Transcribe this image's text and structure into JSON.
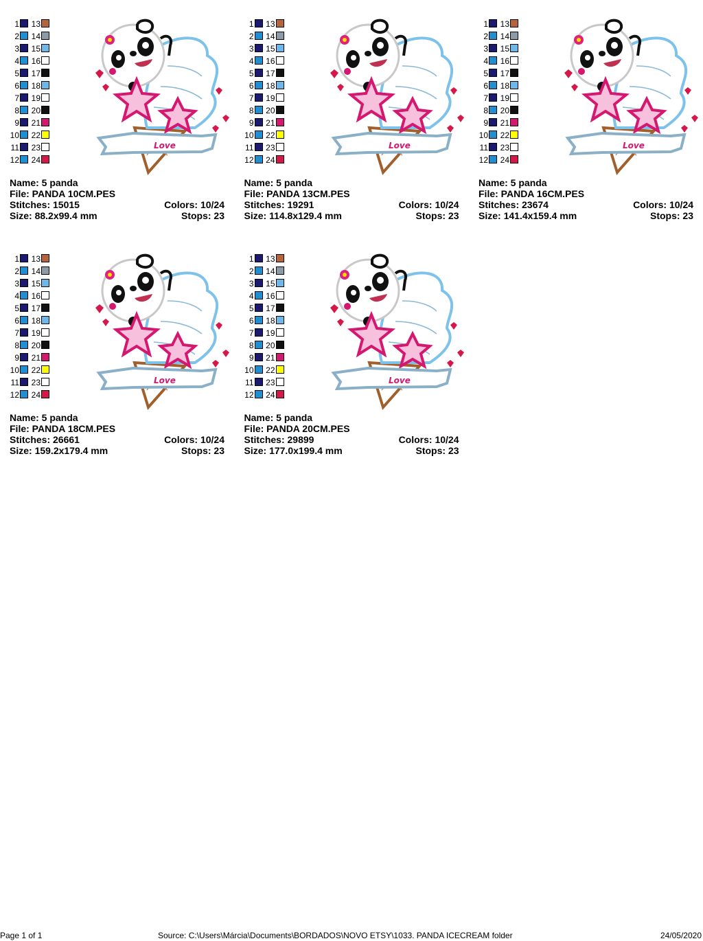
{
  "palette": [
    {
      "number": 1,
      "color": "#1c1a70"
    },
    {
      "number": 2,
      "color": "#1f8fd2"
    },
    {
      "number": 3,
      "color": "#1c1a70"
    },
    {
      "number": 4,
      "color": "#1f8fd2"
    },
    {
      "number": 5,
      "color": "#1c1a70"
    },
    {
      "number": 6,
      "color": "#1f8fd2"
    },
    {
      "number": 7,
      "color": "#1c1a70"
    },
    {
      "number": 8,
      "color": "#1f8fd2"
    },
    {
      "number": 9,
      "color": "#1c1a70"
    },
    {
      "number": 10,
      "color": "#1f8fd2"
    },
    {
      "number": 11,
      "color": "#1c1a70"
    },
    {
      "number": 12,
      "color": "#1f8fd2"
    },
    {
      "number": 13,
      "color": "#b8643a"
    },
    {
      "number": 14,
      "color": "#8b9ba8"
    },
    {
      "number": 15,
      "color": "#6cb8ea"
    },
    {
      "number": 16,
      "color": "#ffffff"
    },
    {
      "number": 17,
      "color": "#111111"
    },
    {
      "number": 18,
      "color": "#6cb8ea"
    },
    {
      "number": 19,
      "color": "#ffffff"
    },
    {
      "number": 20,
      "color": "#111111"
    },
    {
      "number": 21,
      "color": "#d4176f"
    },
    {
      "number": 22,
      "color": "#ffff00"
    },
    {
      "number": 23,
      "color": "#ffffff"
    },
    {
      "number": 24,
      "color": "#d4184a"
    }
  ],
  "designs": [
    {
      "name": "Name: 5 panda",
      "file": "File: PANDA 10CM.PES",
      "stitches": "Stitches: 15015",
      "colors": "Colors: 10/24",
      "size": "Size: 88.2x99.4 mm",
      "stops": "Stops: 23"
    },
    {
      "name": "Name: 5 panda",
      "file": "File: PANDA 13CM.PES",
      "stitches": "Stitches: 19291",
      "colors": "Colors: 10/24",
      "size": "Size: 114.8x129.4 mm",
      "stops": "Stops: 23"
    },
    {
      "name": "Name: 5 panda",
      "file": "File: PANDA 16CM.PES",
      "stitches": "Stitches: 23674",
      "colors": "Colors: 10/24",
      "size": "Size: 141.4x159.4 mm",
      "stops": "Stops: 23"
    },
    {
      "name": "Name: 5 panda",
      "file": "File: PANDA 18CM.PES",
      "stitches": "Stitches: 26661",
      "colors": "Colors: 10/24",
      "size": "Size: 159.2x179.4 mm",
      "stops": "Stops: 23"
    },
    {
      "name": "Name: 5 panda",
      "file": "File: PANDA 20CM.PES",
      "stitches": "Stitches: 29899",
      "colors": "Colors: 10/24",
      "size": "Size: 177.0x199.4 mm",
      "stops": "Stops: 23"
    }
  ],
  "footer": {
    "page": "Page 1 of 1",
    "source": "Source: C:\\Users\\Márcia\\Documents\\BORDADOS\\NOVO ETSY\\1033. PANDA ICECREAM folder",
    "date": "24/05/2020"
  }
}
